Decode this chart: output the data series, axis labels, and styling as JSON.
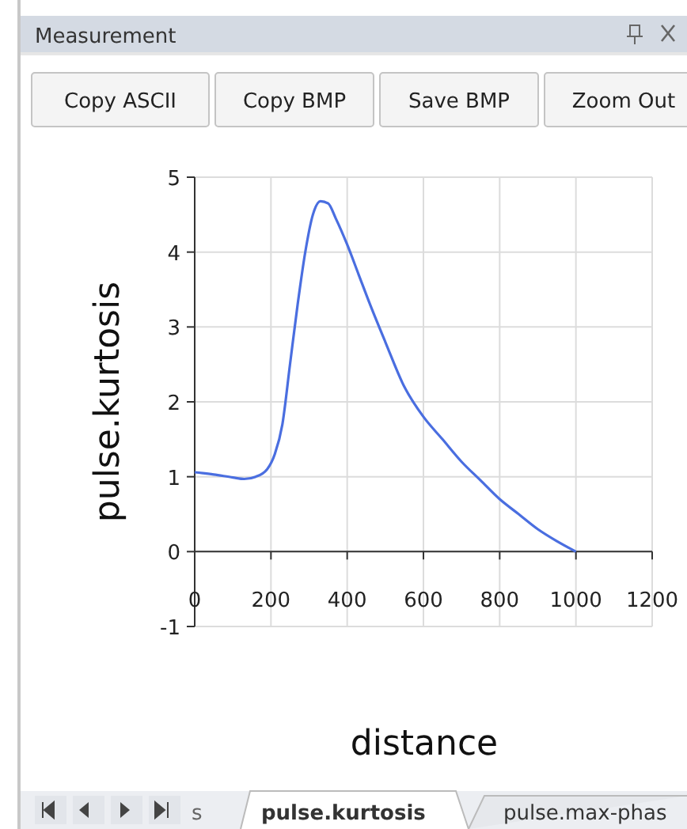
{
  "chart_data": {
    "type": "line",
    "xlabel": "distance",
    "ylabel": "pulse.kurtosis",
    "annotations": [
      "Measurement",
      "Copy ASCII",
      "Copy BMP",
      "Save BMP",
      "Zoom Out",
      "s",
      "pulse.kurtosis",
      "pulse.max-phas"
    ],
    "x": [
      0,
      50,
      100,
      130,
      160,
      190,
      210,
      230,
      250,
      270,
      290,
      310,
      330,
      350,
      370,
      400,
      430,
      460,
      500,
      550,
      600,
      650,
      700,
      750,
      800,
      850,
      900,
      950,
      1000
    ],
    "series": [
      {
        "color": "#4a6ee0",
        "values": [
          1.06,
          1.03,
          0.99,
          0.97,
          1.0,
          1.1,
          1.3,
          1.7,
          2.5,
          3.3,
          4.0,
          4.5,
          4.68,
          4.65,
          4.45,
          4.1,
          3.7,
          3.3,
          2.8,
          2.2,
          1.8,
          1.5,
          1.2,
          0.95,
          0.7,
          0.5,
          0.3,
          0.14,
          0.0
        ]
      }
    ],
    "xlim": [
      0,
      1200
    ],
    "xticks": [
      0,
      200,
      400,
      600,
      800,
      1000,
      1200
    ],
    "ylim": [
      -1,
      5
    ],
    "yticks": [
      -1,
      0,
      1,
      2,
      3,
      4,
      5
    ],
    "grid": true,
    "marker": "none",
    "line_style": "solid"
  }
}
